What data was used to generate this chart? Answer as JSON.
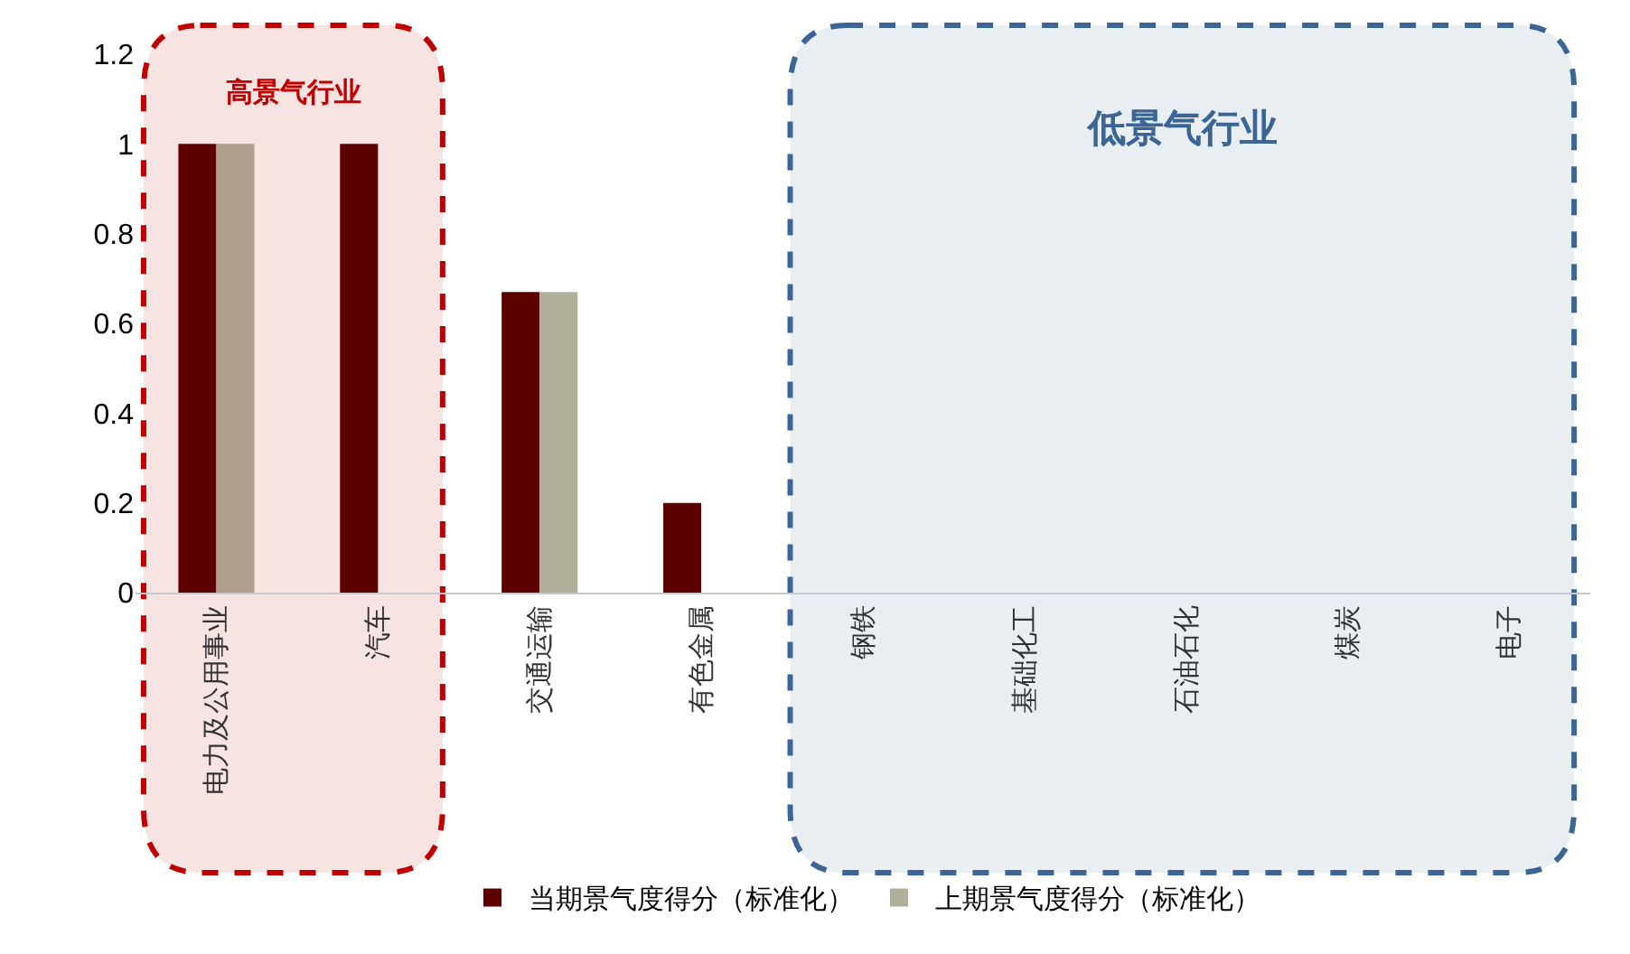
{
  "chart_data": {
    "type": "bar",
    "categories": [
      "电力及公用事业",
      "汽车",
      "交通运输",
      "有色金属",
      "钢铁",
      "基础化工",
      "石油石化",
      "煤炭",
      "电子"
    ],
    "series": [
      {
        "name": "当期景气度得分（标准化）",
        "color": "#5c0000",
        "values": [
          1,
          1,
          0.67,
          0.2,
          0,
          0,
          0,
          0,
          0
        ]
      },
      {
        "name": "上期景气度得分（标准化）",
        "color": "#b0b09a",
        "colors": [
          "#ad9f8b",
          "#b0b09a",
          "#b0b09a",
          "#b0b09a",
          "#b0b09a",
          "#b0b09a",
          "#b0b09a",
          "#b0b09a",
          "#b0b09a"
        ],
        "values": [
          1,
          0,
          0.67,
          0,
          0,
          0,
          0,
          0,
          0
        ]
      }
    ],
    "ylim": [
      0,
      1.2
    ],
    "yticks": [
      0,
      0.2,
      0.4,
      0.6,
      0.8,
      1,
      1.2
    ],
    "bands": [
      {
        "axis": "x",
        "from": "电力及公用事业",
        "to": "汽车",
        "label": "高景气行业",
        "color": "#c00000"
      },
      {
        "axis": "x",
        "from": "钢铁",
        "to": "电子",
        "label": "低景气行业",
        "color": "#3a6595"
      }
    ],
    "grid": false,
    "legend": "bottom"
  }
}
